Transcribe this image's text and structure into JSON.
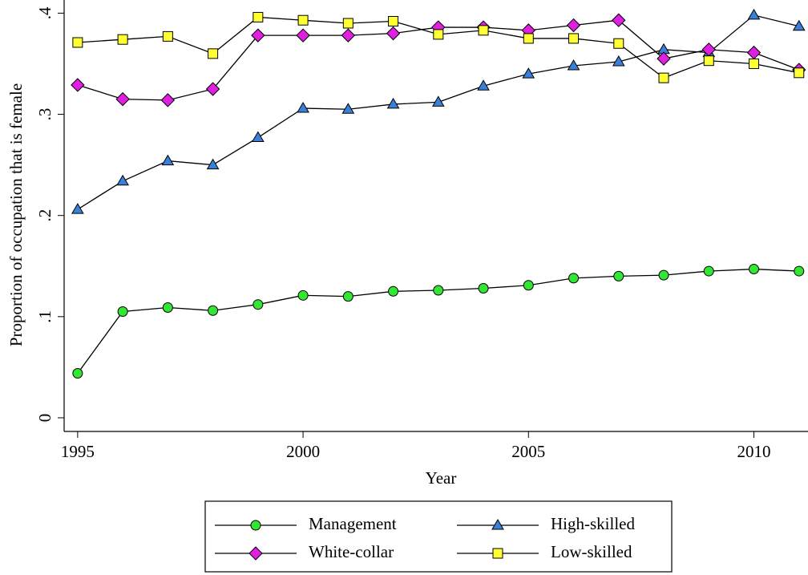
{
  "chart_data": {
    "type": "line",
    "x_label": "Year",
    "y_label": "Proportion of occupation that is female",
    "x": [
      1995,
      1996,
      1997,
      1998,
      1999,
      2000,
      2001,
      2002,
      2003,
      2004,
      2005,
      2006,
      2007,
      2008,
      2009,
      2010,
      2011
    ],
    "xlim": [
      1994.7,
      2011.2
    ],
    "xticks": [
      1995,
      2000,
      2005,
      2010
    ],
    "ylim": [
      -0.0135,
      0.413
    ],
    "yticks": [
      0,
      {
        "value": 0.1,
        "label": ".1"
      },
      {
        "value": 0.2,
        "label": ".2"
      },
      {
        "value": 0.3,
        "label": ".3"
      },
      {
        "value": 0.4,
        "label": ".4"
      }
    ],
    "series": [
      {
        "name": "Management",
        "color": "#33e633",
        "marker": "circle",
        "values": [
          0.044,
          0.105,
          0.109,
          0.106,
          0.112,
          0.121,
          0.12,
          0.125,
          0.126,
          0.128,
          0.131,
          0.138,
          0.14,
          0.141,
          0.145,
          0.147,
          0.145
        ]
      },
      {
        "name": "High-skilled",
        "color": "#3a80d8",
        "marker": "triangle",
        "values": [
          0.206,
          0.234,
          0.254,
          0.25,
          0.277,
          0.306,
          0.305,
          0.31,
          0.312,
          0.328,
          0.34,
          0.348,
          0.352,
          0.364,
          0.361,
          0.398,
          0.387
        ]
      },
      {
        "name": "White-collar",
        "color": "#e020e0",
        "marker": "diamond",
        "values": [
          0.329,
          0.315,
          0.314,
          0.325,
          0.378,
          0.378,
          0.378,
          0.38,
          0.386,
          0.386,
          0.383,
          0.388,
          0.393,
          0.355,
          0.364,
          0.361,
          0.344
        ]
      },
      {
        "name": "Low-skilled",
        "color": "#ffff33",
        "marker": "square",
        "values": [
          0.371,
          0.374,
          0.377,
          0.36,
          0.396,
          0.393,
          0.39,
          0.392,
          0.379,
          0.383,
          0.375,
          0.375,
          0.37,
          0.336,
          0.353,
          0.35,
          0.341
        ]
      }
    ]
  }
}
